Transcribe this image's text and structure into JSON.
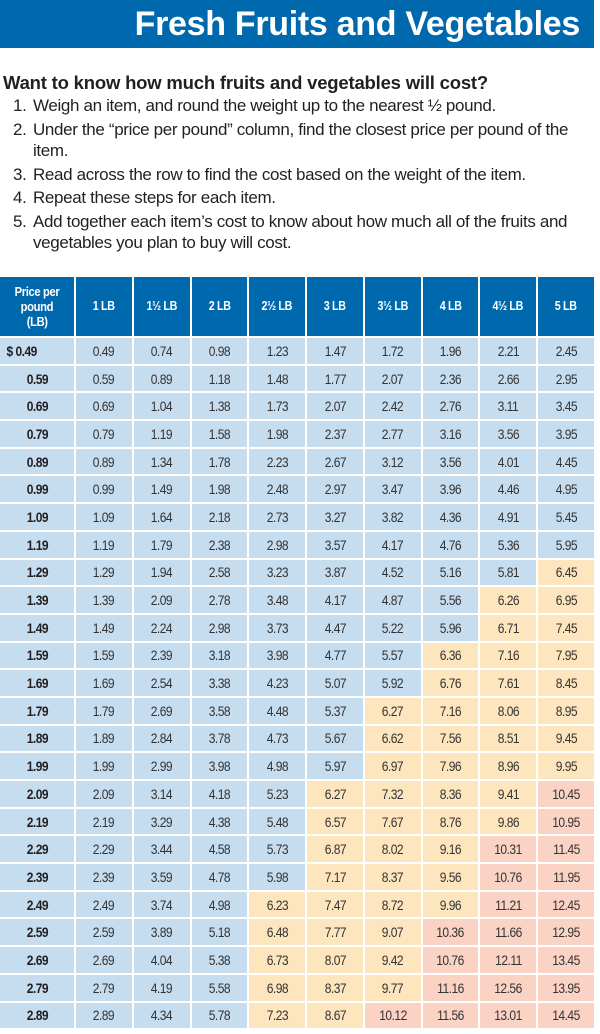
{
  "title": "Fresh Fruits and Vegetables",
  "intro": {
    "heading": "Want to know how much fruits and vegetables will cost?",
    "steps": [
      {
        "num": "1.",
        "text": "Weigh an item, and round the weight up to the nearest ½ pound."
      },
      {
        "num": "2.",
        "text": "Under the “price per pound” column, find the closest price per pound of the item."
      },
      {
        "num": "3.",
        "text": "Read across the row to find the cost based on the weight of the item."
      },
      {
        "num": "4.",
        "text": "Repeat these steps for each item."
      },
      {
        "num": "5.",
        "text": "Add together each item’s cost to know about how much all of the fruits and vegetables you plan to buy will cost."
      }
    ]
  },
  "colors": {
    "brand_blue": "#0068ad",
    "tier_low": "#c6dcef",
    "tier_mid": "#fde6be",
    "tier_high": "#fbd3c5"
  },
  "table": {
    "headers": [
      "Price per pound (LB)",
      "1 LB",
      "1½ LB",
      "2 LB",
      "2½ LB",
      "3 LB",
      "3½ LB",
      "4 LB",
      "4½ LB",
      "5 LB"
    ],
    "header_lines": [
      "Price per",
      "pound",
      "(LB)"
    ],
    "tier_thresholds": {
      "mid_above": 6.0,
      "high_above": 10.0
    },
    "rows": [
      {
        "price": "$ 0.49",
        "values": [
          "0.49",
          "0.74",
          "0.98",
          "1.23",
          "1.47",
          "1.72",
          "1.96",
          "2.21",
          "2.45"
        ]
      },
      {
        "price": "0.59",
        "values": [
          "0.59",
          "0.89",
          "1.18",
          "1.48",
          "1.77",
          "2.07",
          "2.36",
          "2.66",
          "2.95"
        ]
      },
      {
        "price": "0.69",
        "values": [
          "0.69",
          "1.04",
          "1.38",
          "1.73",
          "2.07",
          "2.42",
          "2.76",
          "3.11",
          "3.45"
        ]
      },
      {
        "price": "0.79",
        "values": [
          "0.79",
          "1.19",
          "1.58",
          "1.98",
          "2.37",
          "2.77",
          "3.16",
          "3.56",
          "3.95"
        ]
      },
      {
        "price": "0.89",
        "values": [
          "0.89",
          "1.34",
          "1.78",
          "2.23",
          "2.67",
          "3.12",
          "3.56",
          "4.01",
          "4.45"
        ]
      },
      {
        "price": "0.99",
        "values": [
          "0.99",
          "1.49",
          "1.98",
          "2.48",
          "2.97",
          "3.47",
          "3.96",
          "4.46",
          "4.95"
        ]
      },
      {
        "price": "1.09",
        "values": [
          "1.09",
          "1.64",
          "2.18",
          "2.73",
          "3.27",
          "3.82",
          "4.36",
          "4.91",
          "5.45"
        ]
      },
      {
        "price": "1.19",
        "values": [
          "1.19",
          "1.79",
          "2.38",
          "2.98",
          "3.57",
          "4.17",
          "4.76",
          "5.36",
          "5.95"
        ]
      },
      {
        "price": "1.29",
        "values": [
          "1.29",
          "1.94",
          "2.58",
          "3.23",
          "3.87",
          "4.52",
          "5.16",
          "5.81",
          "6.45"
        ]
      },
      {
        "price": "1.39",
        "values": [
          "1.39",
          "2.09",
          "2.78",
          "3.48",
          "4.17",
          "4.87",
          "5.56",
          "6.26",
          "6.95"
        ]
      },
      {
        "price": "1.49",
        "values": [
          "1.49",
          "2.24",
          "2.98",
          "3.73",
          "4.47",
          "5.22",
          "5.96",
          "6.71",
          "7.45"
        ]
      },
      {
        "price": "1.59",
        "values": [
          "1.59",
          "2.39",
          "3.18",
          "3.98",
          "4.77",
          "5.57",
          "6.36",
          "7.16",
          "7.95"
        ]
      },
      {
        "price": "1.69",
        "values": [
          "1.69",
          "2.54",
          "3.38",
          "4.23",
          "5.07",
          "5.92",
          "6.76",
          "7.61",
          "8.45"
        ]
      },
      {
        "price": "1.79",
        "values": [
          "1.79",
          "2.69",
          "3.58",
          "4.48",
          "5.37",
          "6.27",
          "7.16",
          "8.06",
          "8.95"
        ]
      },
      {
        "price": "1.89",
        "values": [
          "1.89",
          "2.84",
          "3.78",
          "4.73",
          "5.67",
          "6.62",
          "7.56",
          "8.51",
          "9.45"
        ]
      },
      {
        "price": "1.99",
        "values": [
          "1.99",
          "2.99",
          "3.98",
          "4.98",
          "5.97",
          "6.97",
          "7.96",
          "8.96",
          "9.95"
        ]
      },
      {
        "price": "2.09",
        "values": [
          "2.09",
          "3.14",
          "4.18",
          "5.23",
          "6.27",
          "7.32",
          "8.36",
          "9.41",
          "10.45"
        ]
      },
      {
        "price": "2.19",
        "values": [
          "2.19",
          "3.29",
          "4.38",
          "5.48",
          "6.57",
          "7.67",
          "8.76",
          "9.86",
          "10.95"
        ]
      },
      {
        "price": "2.29",
        "values": [
          "2.29",
          "3.44",
          "4.58",
          "5.73",
          "6.87",
          "8.02",
          "9.16",
          "10.31",
          "11.45"
        ]
      },
      {
        "price": "2.39",
        "values": [
          "2.39",
          "3.59",
          "4.78",
          "5.98",
          "7.17",
          "8.37",
          "9.56",
          "10.76",
          "11.95"
        ]
      },
      {
        "price": "2.49",
        "values": [
          "2.49",
          "3.74",
          "4.98",
          "6.23",
          "7.47",
          "8.72",
          "9.96",
          "11.21",
          "12.45"
        ]
      },
      {
        "price": "2.59",
        "values": [
          "2.59",
          "3.89",
          "5.18",
          "6.48",
          "7.77",
          "9.07",
          "10.36",
          "11.66",
          "12.95"
        ]
      },
      {
        "price": "2.69",
        "values": [
          "2.69",
          "4.04",
          "5.38",
          "6.73",
          "8.07",
          "9.42",
          "10.76",
          "12.11",
          "13.45"
        ]
      },
      {
        "price": "2.79",
        "values": [
          "2.79",
          "4.19",
          "5.58",
          "6.98",
          "8.37",
          "9.77",
          "11.16",
          "12.56",
          "13.95"
        ]
      },
      {
        "price": "2.89",
        "values": [
          "2.89",
          "4.34",
          "5.78",
          "7.23",
          "8.67",
          "10.12",
          "11.56",
          "13.01",
          "14.45"
        ]
      }
    ]
  }
}
